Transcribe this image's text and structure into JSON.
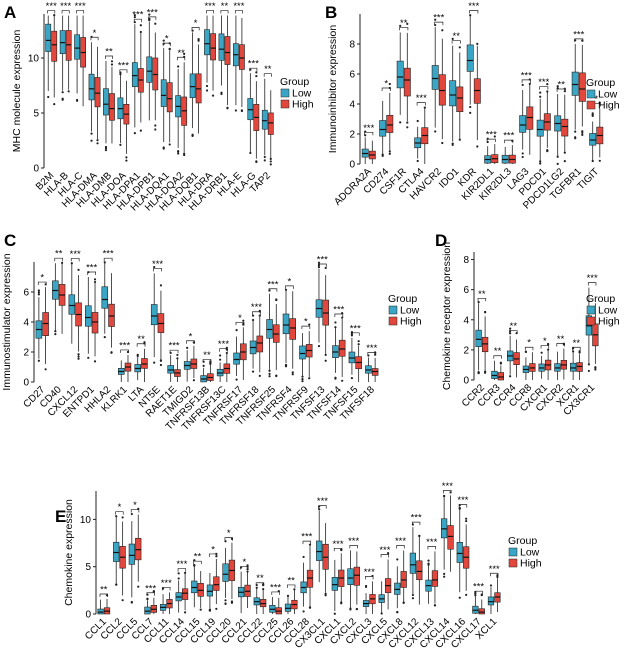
{
  "figure": {
    "colors": {
      "low": "#3aa5c4",
      "high": "#e2473d",
      "median": "#111111",
      "axis": "#222222"
    },
    "legend_title": "Group",
    "legend_low": "Low",
    "legend_high": "High"
  },
  "chart_data": [
    {
      "panel": "A",
      "type": "boxplot",
      "ylabel": "MHC molecule expression",
      "ylim": [
        0,
        14
      ],
      "yticks": [
        0,
        5,
        10
      ],
      "categories": [
        "B2M",
        "HLA-B",
        "HLA-C",
        "HLA-DMA",
        "HLA-DMB",
        "HLA-DOA",
        "HLA-DPA1",
        "HLA-DPB1",
        "HLA-DQA1",
        "HLA-DQA2",
        "HLA-DQB1",
        "HLA-DRA",
        "HLA-DRB1",
        "HLA-E",
        "HLA-G",
        "TAP2"
      ],
      "significance": [
        "***",
        "***",
        "***",
        "*",
        "**",
        "***",
        "***",
        "***",
        "*",
        "**",
        "*",
        "***",
        "**",
        "***",
        "***",
        "**"
      ],
      "series": [
        {
          "name": "Low",
          "medians": [
            11.6,
            11.4,
            10.9,
            7.2,
            5.8,
            5.4,
            8.4,
            8.8,
            6.6,
            5.6,
            7.4,
            11.3,
            10.8,
            10.3,
            5.3,
            4.3
          ]
        },
        {
          "name": "High",
          "medians": [
            11.2,
            11.2,
            10.5,
            6.8,
            5.4,
            4.9,
            8.0,
            8.5,
            6.3,
            5.2,
            7.2,
            10.9,
            10.5,
            10.0,
            4.6,
            4.1
          ]
        }
      ]
    },
    {
      "panel": "B",
      "type": "boxplot",
      "ylabel": "Immunoinhibitor expression",
      "ylim": [
        0,
        10
      ],
      "yticks": [
        0,
        2,
        4,
        6,
        8
      ],
      "categories": [
        "ADORA2A",
        "CD274",
        "CSF1R",
        "CTLA4",
        "HAVCR2",
        "IDO1",
        "KDR",
        "KIR2DL1",
        "KIR2DL3",
        "LAG3",
        "PDCD1",
        "PDCD1LG2",
        "TGFBR1",
        "TIGIT"
      ],
      "significance": [
        "***",
        "*",
        "**",
        "***",
        "***",
        "**",
        "***",
        "***",
        "***",
        "***",
        "***",
        "**",
        "***",
        "*"
      ],
      "series": [
        {
          "name": "Low",
          "medians": [
            0.7,
            2.3,
            5.8,
            1.4,
            5.7,
            4.6,
            6.9,
            0.3,
            0.3,
            2.6,
            2.3,
            2.7,
            5.3,
            1.6
          ]
        },
        {
          "name": "High",
          "medians": [
            0.6,
            2.6,
            5.6,
            1.9,
            4.9,
            4.4,
            4.9,
            0.35,
            0.3,
            3.1,
            2.8,
            2.5,
            5.0,
            1.9
          ]
        }
      ]
    },
    {
      "panel": "C",
      "type": "boxplot",
      "ylabel": "Immunostimulator expression",
      "ylim": [
        0,
        8
      ],
      "yticks": [
        0,
        2,
        4,
        6
      ],
      "categories": [
        "CD27",
        "CD40",
        "CXCL12",
        "ENTPD1",
        "HHLA2",
        "KLRK1",
        "LTA",
        "NT5E",
        "RAET1E",
        "TMIGD2",
        "TNFRSF13B",
        "TNFRSF13C",
        "TNFRSF17",
        "TNFRSF18",
        "TNFRSF25",
        "TNFRSF4",
        "TNFRSF9",
        "TNFSF13",
        "TNFSF14",
        "TNFSF15",
        "TNFSF18"
      ],
      "significance": [
        "*",
        "**",
        "***",
        "***",
        "***",
        "***",
        "**",
        "***",
        "***",
        "*",
        "**",
        "***",
        "*",
        "***",
        "***",
        "*",
        "*",
        "***",
        "***",
        "***",
        "***"
      ],
      "series": [
        {
          "name": "Low",
          "medians": [
            3.5,
            6.1,
            5.1,
            4.3,
            5.5,
            0.7,
            0.9,
            4.4,
            0.8,
            1.1,
            0.2,
            0.6,
            1.5,
            2.3,
            3.5,
            3.8,
            1.9,
            4.9,
            2.0,
            1.6,
            0.8
          ]
        },
        {
          "name": "High",
          "medians": [
            3.9,
            5.8,
            4.5,
            4.0,
            4.4,
            1.0,
            1.2,
            3.9,
            0.6,
            1.2,
            0.3,
            0.9,
            2.0,
            2.6,
            3.2,
            3.6,
            2.1,
            4.6,
            2.2,
            1.3,
            0.7
          ]
        }
      ]
    },
    {
      "panel": "D",
      "type": "boxplot",
      "ylabel": "Chemokine receptor expression",
      "ylim": [
        0,
        8.5
      ],
      "yticks": [
        0,
        2,
        4,
        6,
        8
      ],
      "categories": [
        "CCR2",
        "CCR3",
        "CCR4",
        "CCR8",
        "CXCR1",
        "CXCR2",
        "XCR1",
        "CX3CR1"
      ],
      "significance": [
        "**",
        "**",
        "**",
        "*",
        "*",
        "**",
        "**",
        "***"
      ],
      "series": [
        {
          "name": "Low",
          "medians": [
            2.7,
            0.3,
            1.6,
            0.7,
            0.8,
            0.8,
            0.8,
            3.6
          ]
        },
        {
          "name": "High",
          "medians": [
            2.4,
            0.2,
            1.4,
            0.8,
            1.0,
            1.0,
            0.9,
            3.0
          ]
        }
      ]
    },
    {
      "panel": "E",
      "type": "boxplot",
      "ylabel": "Chemokine expression",
      "ylim": [
        0,
        13
      ],
      "yticks": [
        0,
        5,
        10
      ],
      "categories": [
        "CCL1",
        "CCL2",
        "CCL5",
        "CCL7",
        "CCL11",
        "CCL14",
        "CCL15",
        "CCL19",
        "CCL20",
        "CCL21",
        "CCL22",
        "CCL25",
        "CCL26",
        "CCL28",
        "CX3CL1",
        "CXCL1",
        "CXCL2",
        "CXCL3",
        "CXCL5",
        "CXCL8",
        "CXCL12",
        "CXCL13",
        "CXCL14",
        "CXCL16",
        "CXCL17",
        "XCL1"
      ],
      "significance": [
        "**",
        "*",
        "*",
        "***",
        "***",
        "***",
        "**",
        "*",
        "*",
        "*",
        "**",
        "***",
        "**",
        "***",
        "***",
        "***",
        "***",
        "***",
        "***",
        "***",
        "***",
        "***",
        "***",
        "***",
        "***",
        "***"
      ],
      "series": [
        {
          "name": "Low",
          "medians": [
            0.2,
            6.5,
            6.2,
            0.3,
            0.7,
            1.8,
            2.8,
            2.4,
            4.2,
            2.3,
            1.3,
            0.5,
            0.6,
            2.8,
            6.6,
            3.1,
            3.8,
            1.1,
            1.6,
            2.6,
            5.2,
            3.0,
            9.0,
            6.4,
            0.4,
            1.3
          ]
        },
        {
          "name": "High",
          "medians": [
            0.3,
            6.0,
            6.8,
            0.5,
            1.1,
            2.2,
            2.5,
            3.1,
            4.6,
            2.4,
            1.1,
            0.3,
            1.0,
            3.8,
            6.0,
            3.8,
            4.1,
            1.6,
            3.0,
            3.6,
            4.5,
            3.6,
            8.2,
            6.0,
            0.2,
            1.8
          ]
        }
      ]
    }
  ]
}
